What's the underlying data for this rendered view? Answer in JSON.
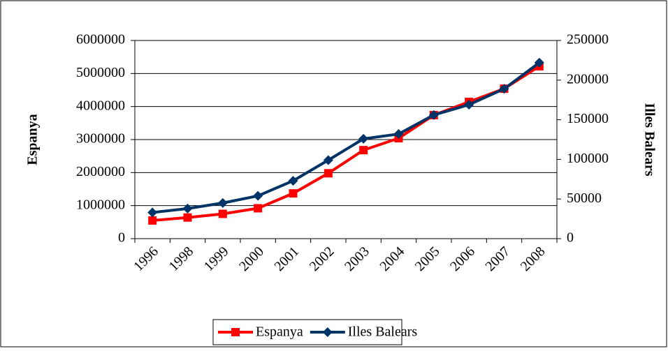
{
  "chart_data": {
    "type": "line",
    "categories": [
      "1996",
      "1998",
      "1999",
      "2000",
      "2001",
      "2002",
      "2003",
      "2004",
      "2005",
      "2006",
      "2007",
      "2008"
    ],
    "series": [
      {
        "name": "Espanya",
        "color": "#ff0000",
        "values": [
          550000,
          640000,
          750000,
          920000,
          1370000,
          1980000,
          2680000,
          3040000,
          3740000,
          4140000,
          4540000,
          5220000
        ]
      },
      {
        "name": "Illes Balears",
        "color": "#003366",
        "axis": "y2",
        "values": [
          33000,
          38000,
          45000,
          54000,
          73000,
          99000,
          126000,
          132000,
          156000,
          169000,
          189000,
          222000
        ]
      }
    ],
    "ylabel": "Espanya",
    "y2label": "Illes Balears",
    "ylim": [
      0,
      6000000
    ],
    "yticks": [
      0,
      1000000,
      2000000,
      3000000,
      4000000,
      5000000,
      6000000
    ],
    "y2lim": [
      0,
      250000
    ],
    "y2ticks": [
      0,
      50000,
      100000,
      150000,
      200000,
      250000
    ],
    "grid": true,
    "legend": "bottom"
  }
}
